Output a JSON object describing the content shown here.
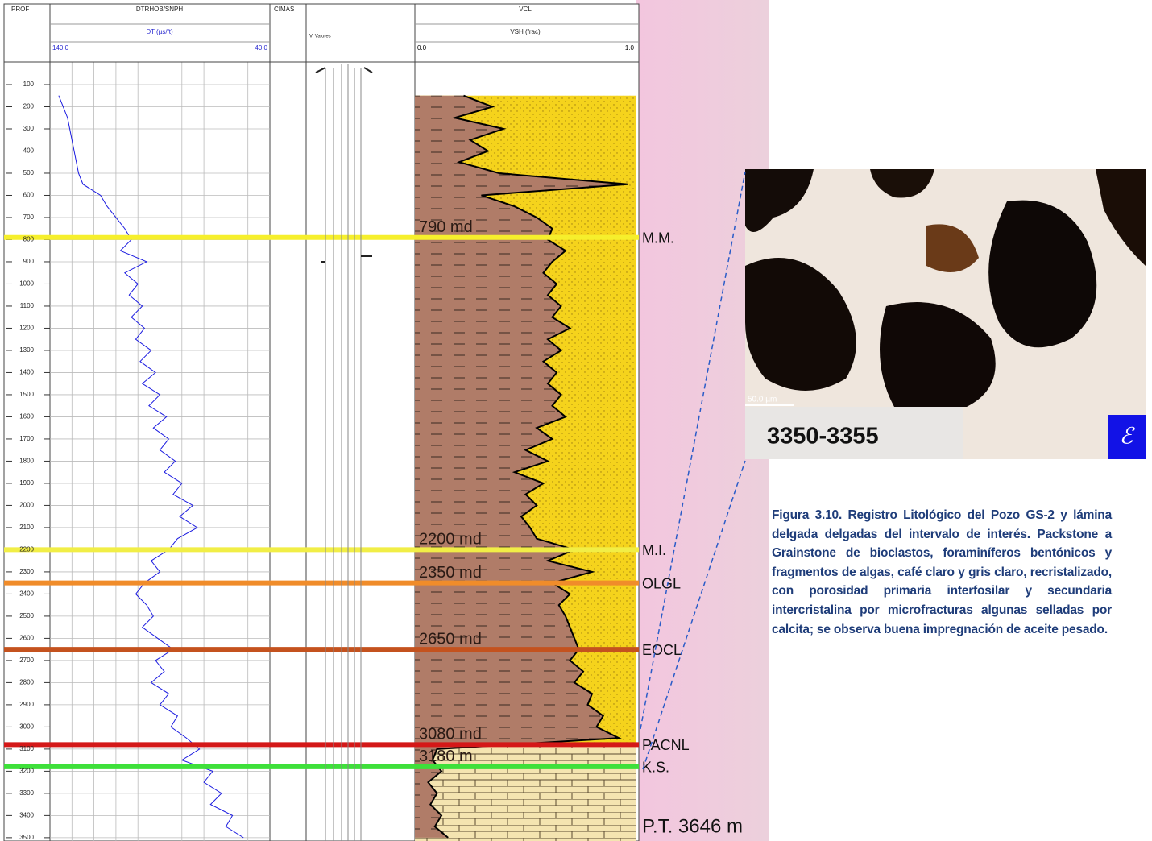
{
  "well_log": {
    "depth_axis": {
      "label": "PROF",
      "lim": [
        0,
        3515
      ],
      "ticks": [
        100,
        200,
        300,
        400,
        500,
        600,
        700,
        800,
        900,
        1000,
        1100,
        1200,
        1300,
        1400,
        1500,
        1600,
        1700,
        1800,
        1900,
        2000,
        2100,
        2200,
        2300,
        2400,
        2500,
        2600,
        2700,
        2800,
        2900,
        3000,
        3100,
        3200,
        3300,
        3400,
        3500
      ]
    },
    "dt_track": {
      "title": "DTRHOB/SNPH",
      "curve_name": "DT (µs/ft)",
      "lim": [
        {
          "value": 140,
          "label": "140.0"
        },
        {
          "value": 40,
          "label": "40.0"
        }
      ],
      "color": "#1c1ce0"
    },
    "mid_tracks": {
      "tops_title": "CIMAS",
      "casing_title": "V. Valores"
    },
    "vsh_track": {
      "title": "VCL",
      "curve_name": "VSH (frac)",
      "lim": [
        {
          "value": 0,
          "label": "0.0"
        },
        {
          "value": 1,
          "label": "1.0"
        }
      ],
      "shale_color": "#b07c68",
      "sand_color": "#f5d31c",
      "limestone_color": "#f4e4b0"
    },
    "samples": {
      "depth": [
        150,
        200,
        250,
        300,
        350,
        400,
        450,
        500,
        550,
        600,
        650,
        700,
        750,
        800,
        850,
        900,
        950,
        1000,
        1050,
        1100,
        1150,
        1200,
        1250,
        1300,
        1350,
        1400,
        1450,
        1500,
        1550,
        1600,
        1650,
        1700,
        1750,
        1800,
        1850,
        1900,
        1950,
        2000,
        2050,
        2100,
        2150,
        2200,
        2250,
        2300,
        2350,
        2400,
        2450,
        2500,
        2550,
        2600,
        2650,
        2700,
        2750,
        2800,
        2850,
        2900,
        2950,
        3000,
        3050,
        3100,
        3150,
        3200,
        3250,
        3300,
        3350,
        3400,
        3450,
        3500
      ],
      "dt": [
        136,
        134,
        132,
        131,
        130,
        129,
        128,
        127,
        125,
        117,
        114,
        110,
        106,
        103,
        108,
        96,
        106,
        100,
        104,
        98,
        103,
        97,
        101,
        94,
        99,
        92,
        98,
        90,
        95,
        87,
        93,
        86,
        90,
        83,
        88,
        80,
        84,
        75,
        81,
        73,
        82,
        86,
        94,
        90,
        97,
        101,
        96,
        93,
        98,
        91,
        84,
        92,
        88,
        94,
        86,
        90,
        82,
        85,
        78,
        72,
        80,
        66,
        70,
        62,
        67,
        57,
        60,
        52
      ],
      "vsh": [
        0.22,
        0.35,
        0.18,
        0.4,
        0.25,
        0.33,
        0.2,
        0.38,
        0.96,
        0.3,
        0.45,
        0.55,
        0.62,
        0.6,
        0.68,
        0.62,
        0.58,
        0.64,
        0.6,
        0.66,
        0.62,
        0.7,
        0.6,
        0.66,
        0.58,
        0.64,
        0.6,
        0.66,
        0.62,
        0.68,
        0.55,
        0.62,
        0.5,
        0.6,
        0.45,
        0.58,
        0.5,
        0.55,
        0.48,
        0.52,
        0.55,
        0.72,
        0.6,
        0.8,
        0.62,
        0.7,
        0.65,
        0.68,
        0.7,
        0.72,
        0.74,
        0.7,
        0.76,
        0.72,
        0.8,
        0.78,
        0.85,
        0.82,
        0.92,
        0.1,
        0.08,
        0.12,
        0.06,
        0.1,
        0.07,
        0.12,
        0.09,
        0.15
      ]
    },
    "tops": [
      {
        "name": "M.M.",
        "label": "790 md",
        "depth": 790,
        "color": "#f6ef2c"
      },
      {
        "name": "M.I.",
        "label": "2200 md",
        "depth": 2200,
        "color": "#f1ee46"
      },
      {
        "name": "OLGL",
        "label": "2350 md",
        "depth": 2350,
        "color": "#f08c2a"
      },
      {
        "name": "EOCL",
        "label": "2650 md",
        "depth": 2650,
        "color": "#c4521e"
      },
      {
        "name": "PACNL",
        "label": "3080 md",
        "depth": 3080,
        "color": "#d41818"
      },
      {
        "name": "K.S.",
        "label": "3180 m",
        "depth": 3180,
        "color": "#3ee03a"
      }
    ],
    "total_depth": "P.T. 3646 m"
  },
  "micrograph": {
    "scale": "50.0 µm",
    "sample": "3350-3355",
    "logo": "ℰ"
  },
  "caption": "Figura 3.10. Registro Litológico del Pozo GS-2 y lámina delgada delgadas del intervalo de interés. Packstone a Grainstone de bioclastos, foraminíferos bentónicos y fragmentos de algas, café claro y gris claro, recristalizado, con porosidad primaria interfosilar y secundaria intercristalina por microfracturas algunas selladas por calcita; se observa buena impregnación de aceite pesado."
}
